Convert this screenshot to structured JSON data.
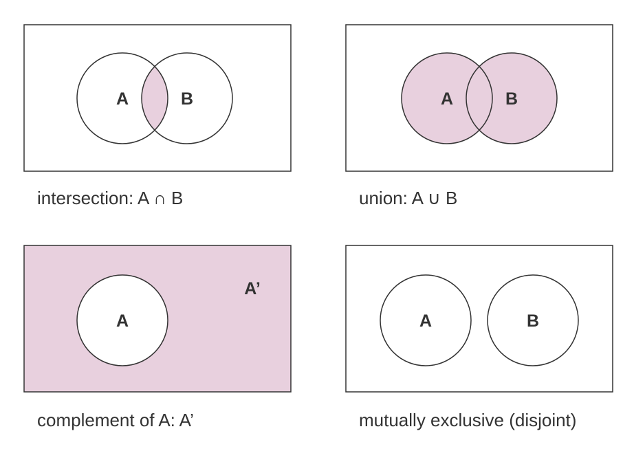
{
  "colors": {
    "shade": "#e8d0de",
    "stroke": "#333333",
    "background": "#ffffff"
  },
  "panels": [
    {
      "id": "intersection",
      "caption": "intersection: A ∩ B",
      "sets": [
        "A",
        "B"
      ],
      "shaded_region": "A ∩ B"
    },
    {
      "id": "union",
      "caption": "union: A ∪ B",
      "sets": [
        "A",
        "B"
      ],
      "shaded_region": "A ∪ B"
    },
    {
      "id": "complement",
      "caption": "complement of A: A’",
      "sets": [
        "A"
      ],
      "complement_label": "A’",
      "shaded_region": "A’"
    },
    {
      "id": "disjoint",
      "caption": "mutually exclusive (disjoint)",
      "sets": [
        "A",
        "B"
      ],
      "shaded_region": "none"
    }
  ]
}
